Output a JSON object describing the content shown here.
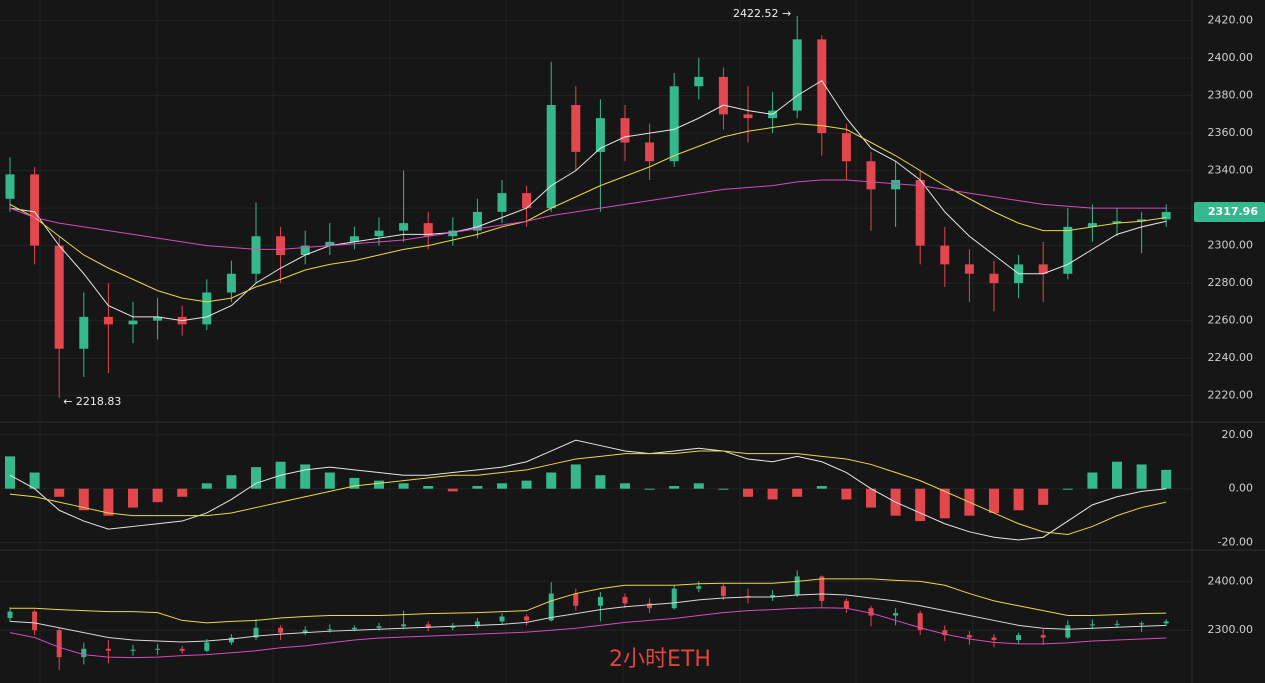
{
  "watermark": "2小时ETH",
  "chart_data": [
    {
      "type": "candlestick",
      "up_color": "#35b88e",
      "down_color": "#e2474e",
      "ylim": [
        2207,
        2431
      ],
      "yticks": [
        {
          "value": 2220,
          "label": "2220.00"
        },
        {
          "value": 2240,
          "label": "2240.00"
        },
        {
          "value": 2260,
          "label": "2260.00"
        },
        {
          "value": 2280,
          "label": "2280.00"
        },
        {
          "value": 2300,
          "label": "2300.00"
        },
        {
          "value": 2320,
          "label": "2320.00"
        },
        {
          "value": 2340,
          "label": "2340.00"
        },
        {
          "value": 2360,
          "label": "2360.00"
        },
        {
          "value": 2380,
          "label": "2380.00"
        },
        {
          "value": 2400,
          "label": "2400.00"
        },
        {
          "value": 2420,
          "label": "2420.00"
        }
      ],
      "grid": true,
      "high_label": "2422.52 →",
      "low_label": "← 2218.83",
      "last_price": 2317.96,
      "candles": [
        [
          2325,
          2347,
          2318,
          2338
        ],
        [
          2338,
          2342,
          2290,
          2300
        ],
        [
          2300,
          2305,
          2218.83,
          2245
        ],
        [
          2245,
          2275,
          2230,
          2262
        ],
        [
          2262,
          2280,
          2232,
          2258
        ],
        [
          2258,
          2270,
          2248,
          2260
        ],
        [
          2260,
          2272,
          2250,
          2262
        ],
        [
          2262,
          2268,
          2252,
          2258
        ],
        [
          2258,
          2282,
          2255,
          2275
        ],
        [
          2275,
          2292,
          2270,
          2285
        ],
        [
          2285,
          2323,
          2280,
          2305
        ],
        [
          2305,
          2310,
          2280,
          2295
        ],
        [
          2295,
          2308,
          2290,
          2300
        ],
        [
          2300,
          2312,
          2295,
          2302
        ],
        [
          2302,
          2310,
          2298,
          2305
        ],
        [
          2305,
          2315,
          2300,
          2308
        ],
        [
          2308,
          2340,
          2302,
          2312
        ],
        [
          2312,
          2318,
          2298,
          2305
        ],
        [
          2305,
          2315,
          2300,
          2308
        ],
        [
          2308,
          2325,
          2304,
          2318
        ],
        [
          2318,
          2335,
          2312,
          2328
        ],
        [
          2328,
          2332,
          2310,
          2320
        ],
        [
          2320,
          2398,
          2318,
          2375
        ],
        [
          2375,
          2385,
          2340,
          2350
        ],
        [
          2350,
          2378,
          2318,
          2368
        ],
        [
          2368,
          2375,
          2345,
          2355
        ],
        [
          2355,
          2365,
          2335,
          2345
        ],
        [
          2345,
          2392,
          2342,
          2385
        ],
        [
          2385,
          2400,
          2378,
          2390
        ],
        [
          2390,
          2395,
          2362,
          2370
        ],
        [
          2370,
          2385,
          2355,
          2368
        ],
        [
          2368,
          2382,
          2360,
          2372
        ],
        [
          2372,
          2422.52,
          2368,
          2410
        ],
        [
          2410,
          2412,
          2348,
          2360
        ],
        [
          2360,
          2365,
          2335,
          2345
        ],
        [
          2345,
          2350,
          2308,
          2330
        ],
        [
          2330,
          2345,
          2310,
          2335
        ],
        [
          2335,
          2340,
          2290,
          2300
        ],
        [
          2300,
          2310,
          2278,
          2290
        ],
        [
          2290,
          2298,
          2270,
          2285
        ],
        [
          2285,
          2292,
          2265,
          2280
        ],
        [
          2280,
          2295,
          2272,
          2290
        ],
        [
          2290,
          2302,
          2270,
          2285
        ],
        [
          2285,
          2320,
          2282,
          2310
        ],
        [
          2310,
          2322,
          2302,
          2312
        ],
        [
          2312,
          2320,
          2305,
          2313
        ],
        [
          2313,
          2318,
          2296,
          2314
        ],
        [
          2314,
          2322,
          2310,
          2317.96
        ]
      ],
      "lines": [
        {
          "color": "#e6e6e6",
          "values": [
            2320,
            2318,
            2300,
            2285,
            2268,
            2262,
            2262,
            2260,
            2262,
            2268,
            2280,
            2288,
            2295,
            2300,
            2302,
            2304,
            2306,
            2306,
            2307,
            2310,
            2315,
            2320,
            2332,
            2340,
            2352,
            2358,
            2360,
            2362,
            2368,
            2375,
            2372,
            2370,
            2380,
            2388,
            2368,
            2352,
            2345,
            2335,
            2318,
            2305,
            2295,
            2285,
            2285,
            2290,
            2298,
            2306,
            2310,
            2313
          ]
        },
        {
          "color": "#e8d84a",
          "values": [
            2322,
            2315,
            2305,
            2295,
            2288,
            2282,
            2276,
            2272,
            2270,
            2272,
            2278,
            2282,
            2287,
            2290,
            2292,
            2295,
            2298,
            2300,
            2303,
            2306,
            2310,
            2313,
            2320,
            2326,
            2332,
            2337,
            2342,
            2348,
            2353,
            2358,
            2361,
            2363,
            2365,
            2364,
            2362,
            2355,
            2348,
            2340,
            2332,
            2325,
            2318,
            2312,
            2308,
            2308,
            2310,
            2312,
            2313,
            2315
          ]
        },
        {
          "color": "#d64bbd",
          "values": [
            2320,
            2315,
            2312,
            2310,
            2308,
            2306,
            2304,
            2302,
            2300,
            2299,
            2298,
            2298,
            2299,
            2300,
            2301,
            2302,
            2303,
            2305,
            2307,
            2309,
            2311,
            2313,
            2316,
            2318,
            2320,
            2322,
            2324,
            2326,
            2328,
            2330,
            2331,
            2332,
            2334,
            2335,
            2335,
            2334,
            2333,
            2332,
            2330,
            2328,
            2326,
            2324,
            2322,
            2321,
            2320,
            2320,
            2320,
            2320
          ]
        }
      ]
    },
    {
      "type": "macd",
      "up_color": "#35b88e",
      "down_color": "#e2474e",
      "ylim": [
        -22,
        24
      ],
      "yticks": [
        {
          "value": -20,
          "label": "-20.00"
        },
        {
          "value": 0,
          "label": "0.00"
        },
        {
          "value": 20,
          "label": "20.00"
        }
      ],
      "histogram": [
        12,
        6,
        -3,
        -8,
        -10,
        -7,
        -5,
        -3,
        2,
        5,
        8,
        10,
        9,
        6,
        4,
        3,
        2,
        1,
        -1,
        1,
        2,
        3,
        6,
        9,
        5,
        2,
        0,
        1,
        2,
        0,
        -3,
        -4,
        -3,
        1,
        -4,
        -7,
        -10,
        -12,
        -11,
        -10,
        -9,
        -8,
        -6,
        0,
        6,
        10,
        9,
        7
      ],
      "lines": [
        {
          "color": "#e6e6e6",
          "values": [
            5,
            0,
            -8,
            -12,
            -15,
            -14,
            -13,
            -12,
            -9,
            -4,
            2,
            5,
            7,
            8,
            7,
            6,
            5,
            5,
            6,
            7,
            8,
            10,
            14,
            18,
            16,
            14,
            13,
            14,
            15,
            14,
            11,
            10,
            12,
            10,
            6,
            0,
            -5,
            -9,
            -13,
            -16,
            -18,
            -19,
            -18,
            -12,
            -6,
            -3,
            -1,
            0
          ]
        },
        {
          "color": "#e8d84a",
          "values": [
            -2,
            -3,
            -5,
            -7,
            -9,
            -10,
            -10,
            -10,
            -10,
            -9,
            -7,
            -5,
            -3,
            -1,
            1,
            2,
            3,
            4,
            5,
            5,
            6,
            7,
            9,
            11,
            12,
            13,
            13,
            13,
            14,
            14,
            13,
            13,
            13,
            12,
            11,
            9,
            6,
            3,
            -1,
            -5,
            -9,
            -13,
            -16,
            -17,
            -14,
            -10,
            -7,
            -5
          ]
        }
      ]
    },
    {
      "type": "bollinger",
      "ylim": [
        2192,
        2460
      ],
      "yticks": [
        {
          "value": 2300,
          "label": "2300.00"
        },
        {
          "value": 2400,
          "label": "2400.00"
        }
      ],
      "lines": [
        {
          "color": "#e8d84a",
          "values": [
            2345,
            2345,
            2342,
            2340,
            2338,
            2338,
            2336,
            2320,
            2315,
            2318,
            2320,
            2325,
            2328,
            2330,
            2330,
            2330,
            2332,
            2334,
            2335,
            2336,
            2338,
            2340,
            2360,
            2375,
            2385,
            2392,
            2392,
            2392,
            2395,
            2396,
            2396,
            2396,
            2400,
            2405,
            2405,
            2405,
            2402,
            2400,
            2392,
            2375,
            2360,
            2350,
            2340,
            2330,
            2330,
            2332,
            2334,
            2335
          ]
        },
        {
          "color": "#d8d8d8",
          "values": [
            2318,
            2315,
            2305,
            2295,
            2285,
            2280,
            2278,
            2276,
            2278,
            2282,
            2288,
            2292,
            2295,
            2298,
            2300,
            2302,
            2304,
            2306,
            2308,
            2310,
            2312,
            2316,
            2326,
            2334,
            2342,
            2348,
            2352,
            2356,
            2362,
            2366,
            2368,
            2368,
            2372,
            2374,
            2372,
            2366,
            2360,
            2350,
            2340,
            2330,
            2320,
            2310,
            2304,
            2302,
            2304,
            2306,
            2308,
            2310
          ]
        },
        {
          "color": "#d64bbd",
          "values": [
            2295,
            2285,
            2265,
            2250,
            2245,
            2244,
            2245,
            2248,
            2250,
            2254,
            2258,
            2264,
            2268,
            2274,
            2280,
            2284,
            2286,
            2288,
            2290,
            2292,
            2294,
            2296,
            2300,
            2304,
            2310,
            2316,
            2320,
            2324,
            2330,
            2336,
            2340,
            2342,
            2345,
            2346,
            2345,
            2335,
            2320,
            2305,
            2292,
            2282,
            2275,
            2272,
            2272,
            2274,
            2278,
            2280,
            2282,
            2284
          ]
        }
      ]
    }
  ]
}
